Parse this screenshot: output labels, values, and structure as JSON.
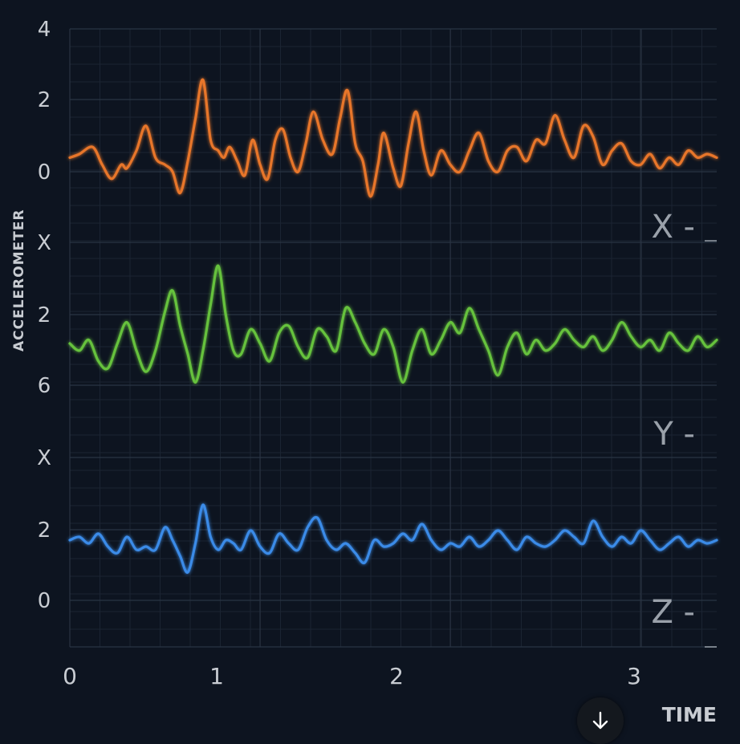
{
  "chart_data": {
    "type": "line",
    "xlabel": "TIME",
    "ylabel": "ACCELEROMETER",
    "xlim": [
      0,
      3.4
    ],
    "x_ticks": [
      "0",
      "1",
      "2",
      "3"
    ],
    "grid": true,
    "panels": [
      {
        "name": "X",
        "label": "X -",
        "color": "#e8762a",
        "y_tick_labels": [
          "4",
          "2",
          "0",
          "X"
        ],
        "series": {
          "x": [
            0,
            0.05,
            0.12,
            0.17,
            0.22,
            0.27,
            0.3,
            0.35,
            0.4,
            0.45,
            0.5,
            0.54,
            0.58,
            0.62,
            0.66,
            0.7,
            0.74,
            0.78,
            0.81,
            0.84,
            0.88,
            0.92,
            0.96,
            1.0,
            1.04,
            1.08,
            1.12,
            1.16,
            1.2,
            1.24,
            1.28,
            1.33,
            1.38,
            1.42,
            1.46,
            1.5,
            1.54,
            1.58,
            1.62,
            1.65,
            1.7,
            1.74,
            1.78,
            1.82,
            1.86,
            1.9,
            1.95,
            2.0,
            2.05,
            2.1,
            2.15,
            2.2,
            2.25,
            2.3,
            2.35,
            2.4,
            2.45,
            2.5,
            2.55,
            2.6,
            2.65,
            2.7,
            2.75,
            2.8,
            2.85,
            2.9,
            2.95,
            3.0,
            3.05,
            3.1,
            3.15,
            3.2,
            3.25,
            3.3,
            3.35,
            3.4
          ],
          "y": [
            0.4,
            0.5,
            0.7,
            0.2,
            -0.2,
            0.2,
            0.1,
            0.6,
            1.3,
            0.4,
            0.2,
            0.0,
            -0.6,
            0.3,
            1.5,
            2.6,
            0.9,
            0.6,
            0.4,
            0.7,
            0.3,
            -0.1,
            0.9,
            0.2,
            -0.2,
            0.9,
            1.2,
            0.4,
            0.0,
            0.8,
            1.7,
            0.9,
            0.5,
            1.5,
            2.3,
            0.8,
            0.3,
            -0.7,
            0.2,
            1.1,
            0.1,
            -0.4,
            0.8,
            1.7,
            0.6,
            -0.1,
            0.6,
            0.2,
            0.0,
            0.6,
            1.1,
            0.3,
            0.0,
            0.6,
            0.7,
            0.3,
            0.9,
            0.8,
            1.6,
            0.9,
            0.4,
            1.3,
            1.0,
            0.2,
            0.6,
            0.8,
            0.3,
            0.2,
            0.5,
            0.1,
            0.4,
            0.2,
            0.6,
            0.4,
            0.5,
            0.4
          ]
        }
      },
      {
        "name": "Y",
        "label": "Y -",
        "color": "#66c23e",
        "y_tick_labels": [
          "2",
          "6",
          "X"
        ],
        "series": {
          "x": [
            0,
            0.05,
            0.1,
            0.15,
            0.2,
            0.25,
            0.3,
            0.35,
            0.4,
            0.45,
            0.5,
            0.54,
            0.58,
            0.62,
            0.66,
            0.7,
            0.74,
            0.78,
            0.82,
            0.86,
            0.9,
            0.95,
            1.0,
            1.05,
            1.1,
            1.15,
            1.2,
            1.25,
            1.3,
            1.35,
            1.4,
            1.45,
            1.5,
            1.55,
            1.6,
            1.65,
            1.7,
            1.75,
            1.8,
            1.85,
            1.9,
            1.95,
            2.0,
            2.05,
            2.1,
            2.15,
            2.2,
            2.25,
            2.3,
            2.35,
            2.4,
            2.45,
            2.5,
            2.55,
            2.6,
            2.65,
            2.7,
            2.75,
            2.8,
            2.85,
            2.9,
            2.95,
            3.0,
            3.05,
            3.1,
            3.15,
            3.2,
            3.25,
            3.3,
            3.35,
            3.4
          ],
          "y": [
            0.5,
            0.3,
            0.6,
            0.0,
            -0.2,
            0.5,
            1.1,
            0.3,
            -0.3,
            0.3,
            1.4,
            2.0,
            1.0,
            0.2,
            -0.6,
            0.3,
            1.6,
            2.7,
            1.3,
            0.3,
            0.2,
            0.9,
            0.5,
            0.0,
            0.8,
            1.0,
            0.4,
            0.1,
            0.9,
            0.7,
            0.3,
            1.5,
            1.1,
            0.5,
            0.2,
            0.9,
            0.4,
            -0.6,
            0.3,
            0.9,
            0.2,
            0.6,
            1.1,
            0.8,
            1.5,
            0.9,
            0.3,
            -0.4,
            0.4,
            0.8,
            0.2,
            0.6,
            0.3,
            0.5,
            0.9,
            0.6,
            0.4,
            0.7,
            0.3,
            0.6,
            1.1,
            0.7,
            0.4,
            0.6,
            0.3,
            0.8,
            0.5,
            0.3,
            0.7,
            0.4,
            0.6
          ]
        }
      },
      {
        "name": "Z",
        "label": "Z -",
        "color": "#3a8be8",
        "y_tick_labels": [
          "2",
          "0"
        ],
        "series": {
          "x": [
            0,
            0.05,
            0.1,
            0.15,
            0.2,
            0.25,
            0.3,
            0.35,
            0.4,
            0.45,
            0.5,
            0.54,
            0.58,
            0.62,
            0.66,
            0.7,
            0.74,
            0.78,
            0.82,
            0.86,
            0.9,
            0.95,
            1.0,
            1.05,
            1.1,
            1.15,
            1.2,
            1.25,
            1.3,
            1.35,
            1.4,
            1.45,
            1.5,
            1.55,
            1.6,
            1.65,
            1.7,
            1.75,
            1.8,
            1.85,
            1.9,
            1.95,
            2.0,
            2.05,
            2.1,
            2.15,
            2.2,
            2.25,
            2.3,
            2.35,
            2.4,
            2.45,
            2.5,
            2.55,
            2.6,
            2.65,
            2.7,
            2.75,
            2.8,
            2.85,
            2.9,
            2.95,
            3.0,
            3.05,
            3.1,
            3.15,
            3.2,
            3.25,
            3.3,
            3.35,
            3.4
          ],
          "y": [
            0.5,
            0.6,
            0.4,
            0.7,
            0.3,
            0.1,
            0.6,
            0.2,
            0.3,
            0.2,
            0.9,
            0.5,
            0.0,
            -0.5,
            0.4,
            1.6,
            0.6,
            0.2,
            0.5,
            0.4,
            0.2,
            0.8,
            0.3,
            0.1,
            0.7,
            0.4,
            0.2,
            0.9,
            1.2,
            0.5,
            0.2,
            0.4,
            0.1,
            -0.2,
            0.5,
            0.3,
            0.4,
            0.7,
            0.5,
            1.0,
            0.5,
            0.2,
            0.4,
            0.3,
            0.6,
            0.3,
            0.5,
            0.8,
            0.5,
            0.2,
            0.6,
            0.4,
            0.3,
            0.5,
            0.8,
            0.6,
            0.4,
            1.1,
            0.6,
            0.3,
            0.6,
            0.4,
            0.8,
            0.5,
            0.2,
            0.4,
            0.6,
            0.3,
            0.5,
            0.4,
            0.5
          ]
        }
      }
    ]
  },
  "colors": {
    "background": "#0d1420",
    "grid_minor": "#1b2432",
    "grid_major": "#2a3443",
    "text": "#c8ccd2"
  },
  "scroll_button": {
    "icon": "arrow-down-icon"
  }
}
